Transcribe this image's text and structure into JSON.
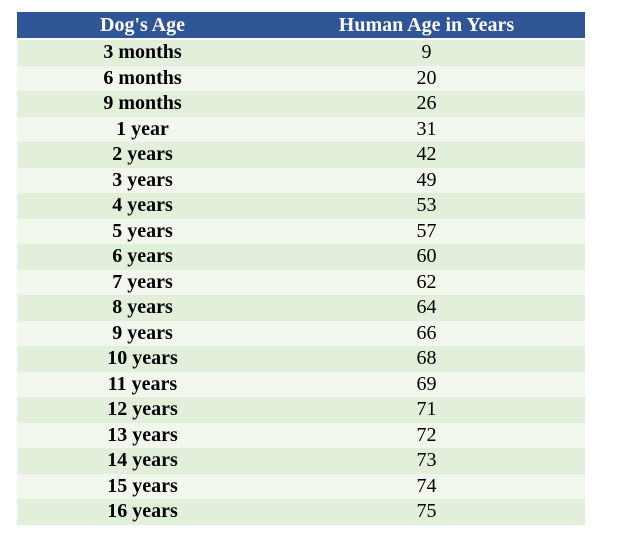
{
  "table": {
    "header": [
      "Dog's Age",
      "Human Age in Years"
    ],
    "rows": [
      [
        "3 months",
        9
      ],
      [
        "6 months",
        20
      ],
      [
        "9 months",
        26
      ],
      [
        "1 year",
        31
      ],
      [
        "2 years",
        42
      ],
      [
        "3 years",
        49
      ],
      [
        "4 years",
        53
      ],
      [
        "5 years",
        57
      ],
      [
        "6 years",
        60
      ],
      [
        "7 years",
        62
      ],
      [
        "8 years",
        64
      ],
      [
        "9 years",
        66
      ],
      [
        "10 years",
        68
      ],
      [
        "11 years",
        69
      ],
      [
        "12 years",
        71
      ],
      [
        "13 years",
        72
      ],
      [
        "14 years",
        73
      ],
      [
        "15 years",
        74
      ],
      [
        "16 years",
        75
      ]
    ]
  }
}
